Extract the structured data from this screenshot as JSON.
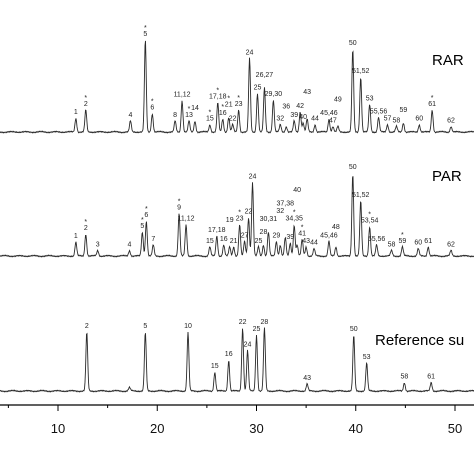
{
  "chart_data": {
    "type": "line",
    "x_ticks": [
      10,
      20,
      30,
      40,
      50
    ],
    "xlim": [
      0,
      52
    ],
    "grid": false,
    "series": [
      {
        "name": "RAR",
        "peaks": [
          {
            "x": 11.8,
            "h": 0.15,
            "label": "1"
          },
          {
            "x": 12.8,
            "h": 0.24,
            "label": "2",
            "star": true
          },
          {
            "x": 17.3,
            "h": 0.12,
            "label": "4"
          },
          {
            "x": 18.8,
            "h": 1.0,
            "label": "5",
            "star": true
          },
          {
            "x": 19.5,
            "h": 0.2,
            "label": "6",
            "star": true
          },
          {
            "x": 21.8,
            "h": 0.12,
            "label": "8"
          },
          {
            "x": 22.5,
            "h": 0.34,
            "label": "11,12"
          },
          {
            "x": 23.2,
            "h": 0.12,
            "label": "13",
            "star": true
          },
          {
            "x": 23.8,
            "h": 0.12,
            "label": "14"
          },
          {
            "x": 25.3,
            "h": 0.08,
            "label": "15",
            "star": true
          },
          {
            "x": 26.1,
            "h": 0.32,
            "label": "17,18",
            "star": true
          },
          {
            "x": 26.6,
            "h": 0.14,
            "label": "16",
            "star": true
          },
          {
            "x": 27.2,
            "h": 0.16,
            "label": "21",
            "star": true
          },
          {
            "x": 27.6,
            "h": 0.08,
            "label": "22"
          },
          {
            "x": 28.2,
            "h": 0.24,
            "label": "23",
            "star": true
          },
          {
            "x": 29.3,
            "h": 0.8,
            "label": "24"
          },
          {
            "x": 30.1,
            "h": 0.42,
            "label": "25"
          },
          {
            "x": 30.8,
            "h": 0.48,
            "label": "26,27"
          },
          {
            "x": 31.7,
            "h": 0.35,
            "label": "29,30"
          },
          {
            "x": 32.4,
            "h": 0.08,
            "label": "32"
          },
          {
            "x": 33.0,
            "h": 0.06,
            "label": "36"
          },
          {
            "x": 33.8,
            "h": 0.12,
            "label": "39"
          },
          {
            "x": 34.4,
            "h": 0.22,
            "label": "42"
          },
          {
            "x": 34.7,
            "h": 0.1,
            "label": "40"
          },
          {
            "x": 35.1,
            "h": 0.14,
            "label": "43"
          },
          {
            "x": 35.9,
            "h": 0.08,
            "label": "44"
          },
          {
            "x": 37.3,
            "h": 0.14,
            "label": "45,46"
          },
          {
            "x": 37.7,
            "h": 0.06,
            "label": "47"
          },
          {
            "x": 38.2,
            "h": 0.06,
            "label": "49"
          },
          {
            "x": 39.7,
            "h": 0.9,
            "label": "50"
          },
          {
            "x": 40.5,
            "h": 0.6,
            "label": "51,52"
          },
          {
            "x": 41.4,
            "h": 0.3,
            "label": "53"
          },
          {
            "x": 42.3,
            "h": 0.16,
            "label": "55,56"
          },
          {
            "x": 43.2,
            "h": 0.08,
            "label": "57"
          },
          {
            "x": 44.1,
            "h": 0.06,
            "label": "58"
          },
          {
            "x": 44.8,
            "h": 0.1,
            "label": "59"
          },
          {
            "x": 46.4,
            "h": 0.08,
            "label": "60"
          },
          {
            "x": 47.7,
            "h": 0.24,
            "label": "61",
            "star": true
          },
          {
            "x": 49.6,
            "h": 0.06,
            "label": "62"
          }
        ]
      },
      {
        "name": "PAR",
        "peaks": [
          {
            "x": 11.8,
            "h": 0.15,
            "label": "1"
          },
          {
            "x": 12.8,
            "h": 0.24,
            "label": "2",
            "star": true
          },
          {
            "x": 14.0,
            "h": 0.06,
            "label": "3"
          },
          {
            "x": 17.2,
            "h": 0.06,
            "label": "4"
          },
          {
            "x": 18.5,
            "h": 0.26,
            "label": "5",
            "star": true
          },
          {
            "x": 18.9,
            "h": 0.38,
            "label": "6",
            "star": true
          },
          {
            "x": 19.6,
            "h": 0.12,
            "label": "7"
          },
          {
            "x": 22.2,
            "h": 0.46,
            "label": "9",
            "star": true
          },
          {
            "x": 22.9,
            "h": 0.34,
            "label": "11,12"
          },
          {
            "x": 25.3,
            "h": 0.1,
            "label": "15"
          },
          {
            "x": 26.0,
            "h": 0.22,
            "label": "17,18"
          },
          {
            "x": 26.7,
            "h": 0.12,
            "label": "16"
          },
          {
            "x": 27.3,
            "h": 0.1,
            "label": "19"
          },
          {
            "x": 27.7,
            "h": 0.1,
            "label": "21"
          },
          {
            "x": 28.3,
            "h": 0.34,
            "label": "23",
            "star": true
          },
          {
            "x": 28.8,
            "h": 0.16,
            "label": "27"
          },
          {
            "x": 29.2,
            "h": 0.42,
            "label": "22"
          },
          {
            "x": 29.6,
            "h": 0.8,
            "label": "24"
          },
          {
            "x": 30.2,
            "h": 0.1,
            "label": "25"
          },
          {
            "x": 30.7,
            "h": 0.12,
            "label": "28"
          },
          {
            "x": 31.2,
            "h": 0.26,
            "label": "30,31"
          },
          {
            "x": 32.0,
            "h": 0.16,
            "label": "29"
          },
          {
            "x": 32.4,
            "h": 0.12,
            "label": "32"
          },
          {
            "x": 32.9,
            "h": 0.2,
            "label": "37,38"
          },
          {
            "x": 33.4,
            "h": 0.14,
            "label": "39"
          },
          {
            "x": 33.8,
            "h": 0.34,
            "label": "34,35",
            "star": true
          },
          {
            "x": 34.1,
            "h": 0.12,
            "label": "40"
          },
          {
            "x": 34.6,
            "h": 0.18,
            "label": "41",
            "star": true
          },
          {
            "x": 35.0,
            "h": 0.1,
            "label": "43"
          },
          {
            "x": 35.8,
            "h": 0.08,
            "label": "44"
          },
          {
            "x": 37.3,
            "h": 0.16,
            "label": "45,46"
          },
          {
            "x": 38.0,
            "h": 0.1,
            "label": "48"
          },
          {
            "x": 39.7,
            "h": 0.9,
            "label": "50"
          },
          {
            "x": 40.5,
            "h": 0.6,
            "label": "51,52"
          },
          {
            "x": 41.4,
            "h": 0.32,
            "label": "53,54",
            "star": true
          },
          {
            "x": 42.1,
            "h": 0.12,
            "label": "55,56"
          },
          {
            "x": 43.6,
            "h": 0.06,
            "label": "58"
          },
          {
            "x": 44.7,
            "h": 0.1,
            "label": "59",
            "star": true
          },
          {
            "x": 46.3,
            "h": 0.08,
            "label": "60"
          },
          {
            "x": 47.3,
            "h": 0.1,
            "label": "61"
          },
          {
            "x": 49.6,
            "h": 0.06,
            "label": "62"
          }
        ]
      },
      {
        "name": "Reference su",
        "peaks": [
          {
            "x": 12.9,
            "h": 0.84,
            "label": "2"
          },
          {
            "x": 17.2,
            "h": 0.05,
            "label": ""
          },
          {
            "x": 18.8,
            "h": 0.84,
            "label": "5"
          },
          {
            "x": 23.1,
            "h": 0.84,
            "label": "10"
          },
          {
            "x": 25.8,
            "h": 0.27,
            "label": "15"
          },
          {
            "x": 27.2,
            "h": 0.44,
            "label": "16"
          },
          {
            "x": 28.6,
            "h": 0.9,
            "label": "22"
          },
          {
            "x": 29.1,
            "h": 0.58,
            "label": "24"
          },
          {
            "x": 30.0,
            "h": 0.8,
            "label": "25"
          },
          {
            "x": 30.8,
            "h": 0.9,
            "label": "28"
          },
          {
            "x": 35.1,
            "h": 0.1,
            "label": "43"
          },
          {
            "x": 39.8,
            "h": 0.8,
            "label": "50"
          },
          {
            "x": 41.1,
            "h": 0.4,
            "label": "53"
          },
          {
            "x": 44.9,
            "h": 0.12,
            "label": "58"
          },
          {
            "x": 47.6,
            "h": 0.12,
            "label": "61"
          }
        ]
      }
    ]
  }
}
